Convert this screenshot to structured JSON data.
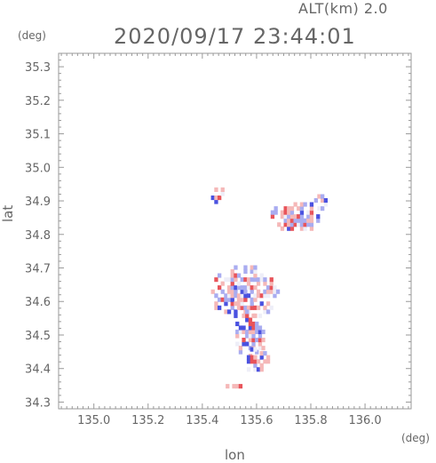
{
  "header": {
    "altitude_label": "ALT(km) 2.0",
    "timestamp": "2020/09/17 23:44:01"
  },
  "chart_data": {
    "type": "heatmap",
    "title": "2020/09/17 23:44:01",
    "subtitle": "ALT(km) 2.0",
    "xlabel": "lon",
    "ylabel": "lat",
    "x_unit": "(deg)",
    "y_unit": "(deg)",
    "xlim": [
      134.87,
      136.17
    ],
    "ylim": [
      34.28,
      35.34
    ],
    "x_ticks": [
      "135.0",
      "135.2",
      "135.4",
      "135.6",
      "135.8",
      "136.0"
    ],
    "y_ticks": [
      "34.3",
      "34.4",
      "34.5",
      "34.6",
      "34.7",
      "34.8",
      "34.9",
      "35.0",
      "35.1",
      "35.2",
      "35.3"
    ],
    "grid": false,
    "colors": {
      "positive_strong": "#e8545a",
      "positive_light": "#f5b8b8",
      "neutral": "#eeeef8",
      "negative_light": "#a9acf0",
      "negative_strong": "#4a52e0"
    },
    "echo_regions": [
      {
        "lon": 135.55,
        "lat": 34.62,
        "r_lon": 0.13,
        "r_lat": 0.08
      },
      {
        "lon": 135.57,
        "lat": 34.5,
        "r_lon": 0.06,
        "r_lat": 0.08
      },
      {
        "lon": 135.59,
        "lat": 34.42,
        "r_lon": 0.05,
        "r_lat": 0.04
      },
      {
        "lon": 135.74,
        "lat": 34.85,
        "r_lon": 0.1,
        "r_lat": 0.05
      },
      {
        "lon": 135.83,
        "lat": 34.89,
        "r_lon": 0.03,
        "r_lat": 0.03
      },
      {
        "lon": 135.45,
        "lat": 34.91,
        "r_lon": 0.03,
        "r_lat": 0.03
      },
      {
        "lon": 135.5,
        "lat": 34.34,
        "r_lon": 0.05,
        "r_lat": 0.01
      }
    ]
  }
}
